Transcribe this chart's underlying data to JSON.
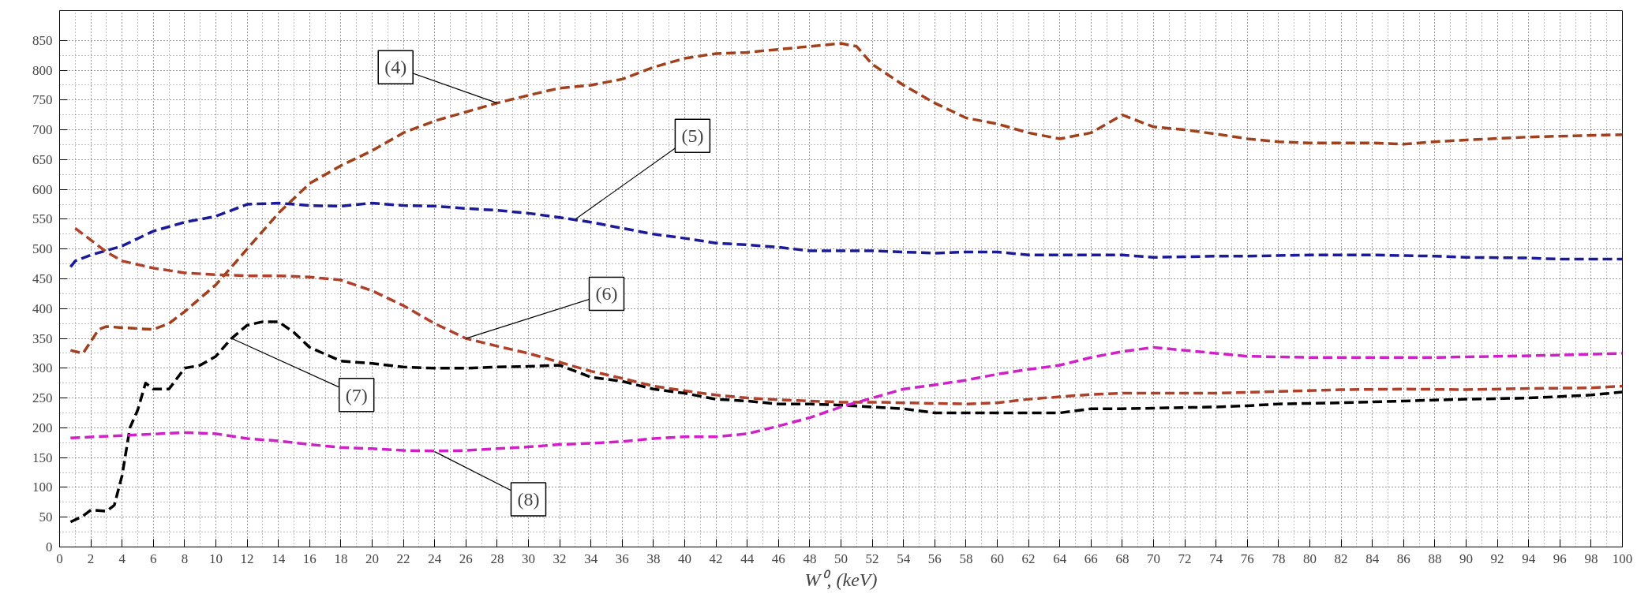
{
  "chart_data": {
    "type": "line",
    "xlabel": "W⁰, (keV)",
    "xlim": [
      0,
      100
    ],
    "ylim": [
      0,
      900
    ],
    "xticks": [
      0,
      2,
      4,
      6,
      8,
      10,
      12,
      14,
      16,
      18,
      20,
      22,
      24,
      26,
      28,
      30,
      32,
      34,
      36,
      38,
      40,
      42,
      44,
      46,
      48,
      50,
      52,
      54,
      56,
      58,
      60,
      62,
      64,
      66,
      68,
      70,
      72,
      74,
      76,
      78,
      80,
      82,
      84,
      86,
      88,
      90,
      92,
      94,
      96,
      98,
      100
    ],
    "yticks": [
      0,
      50,
      100,
      150,
      200,
      250,
      300,
      350,
      400,
      450,
      500,
      550,
      600,
      650,
      700,
      750,
      800,
      850
    ],
    "grid": true,
    "line_style": "dashed",
    "series": [
      {
        "color": "#a0401c",
        "x": [
          0.7,
          1.5,
          2.5,
          3,
          4,
          6,
          7,
          8,
          10,
          12,
          14,
          16,
          18,
          20,
          22,
          24,
          26,
          28,
          30,
          32,
          34,
          36,
          38,
          40,
          42,
          44,
          46,
          48,
          50,
          51,
          52,
          54,
          56,
          58,
          60,
          62,
          64,
          66,
          68,
          70,
          72,
          74,
          76,
          78,
          80,
          84,
          86,
          88,
          90,
          94,
          100
        ],
        "values": [
          330,
          325,
          365,
          370,
          368,
          365,
          375,
          395,
          440,
          500,
          560,
          610,
          640,
          665,
          695,
          715,
          730,
          745,
          758,
          770,
          775,
          785,
          805,
          820,
          828,
          830,
          835,
          840,
          845,
          840,
          810,
          775,
          745,
          720,
          710,
          695,
          685,
          695,
          725,
          705,
          700,
          693,
          685,
          680,
          678,
          678,
          676,
          680,
          683,
          688,
          692
        ]
      },
      {
        "color": "#1a1a9a",
        "x": [
          0.7,
          1,
          2,
          4,
          6,
          8,
          10,
          12,
          14,
          16,
          18,
          20,
          22,
          24,
          26,
          28,
          30,
          32,
          34,
          36,
          38,
          40,
          42,
          44,
          46,
          48,
          50,
          52,
          54,
          56,
          58,
          60,
          62,
          64,
          66,
          68,
          70,
          72,
          74,
          76,
          80,
          84,
          88,
          90,
          94,
          96,
          100
        ],
        "values": [
          470,
          480,
          490,
          505,
          530,
          545,
          555,
          575,
          577,
          573,
          572,
          577,
          573,
          572,
          568,
          565,
          560,
          553,
          545,
          535,
          525,
          518,
          510,
          507,
          503,
          497,
          497,
          497,
          495,
          493,
          495,
          495,
          490,
          490,
          490,
          490,
          486,
          487,
          488,
          488,
          490,
          490,
          488,
          486,
          485,
          483,
          483
        ]
      },
      {
        "color": "#b0402a",
        "x": [
          1,
          2,
          3,
          4,
          6,
          8,
          10,
          12,
          14,
          16,
          18,
          20,
          22,
          24,
          26,
          28,
          30,
          32,
          34,
          36,
          38,
          40,
          42,
          44,
          46,
          48,
          50,
          52,
          54,
          56,
          58,
          60,
          62,
          64,
          66,
          68,
          70,
          74,
          78,
          82,
          86,
          90,
          94,
          98,
          100
        ],
        "values": [
          535,
          515,
          495,
          480,
          468,
          460,
          457,
          455,
          455,
          453,
          448,
          430,
          405,
          375,
          350,
          337,
          325,
          310,
          295,
          283,
          270,
          262,
          255,
          250,
          247,
          245,
          243,
          243,
          242,
          241,
          240,
          242,
          248,
          252,
          256,
          258,
          258,
          258,
          261,
          264,
          265,
          264,
          266,
          267,
          270
        ]
      },
      {
        "color": "#000000",
        "x": [
          0.7,
          1.5,
          2,
          3,
          3.5,
          4,
          4.5,
          5,
          5.5,
          6,
          7,
          8,
          9,
          10,
          11,
          12,
          13,
          14,
          15,
          16,
          18,
          20,
          22,
          24,
          26,
          28,
          30,
          32,
          34,
          36,
          38,
          40,
          42,
          44,
          46,
          48,
          50,
          52,
          54,
          56,
          58,
          60,
          62,
          64,
          66,
          68,
          70,
          74,
          76,
          78,
          82,
          86,
          90,
          94,
          98,
          100
        ],
        "values": [
          42,
          52,
          62,
          60,
          70,
          120,
          200,
          230,
          275,
          265,
          265,
          300,
          305,
          320,
          350,
          372,
          378,
          378,
          360,
          335,
          312,
          308,
          302,
          300,
          300,
          302,
          303,
          305,
          285,
          278,
          265,
          258,
          248,
          245,
          240,
          240,
          238,
          235,
          232,
          225,
          225,
          225,
          225,
          225,
          232,
          232,
          233,
          235,
          237,
          240,
          242,
          245,
          248,
          250,
          255,
          260
        ]
      },
      {
        "color": "#d020c8",
        "x": [
          0.7,
          4,
          8,
          10,
          12,
          14,
          16,
          18,
          20,
          22,
          24,
          26,
          28,
          30,
          32,
          34,
          36,
          38,
          40,
          42,
          44,
          46,
          48,
          50,
          52,
          54,
          56,
          58,
          60,
          62,
          64,
          66,
          68,
          70,
          72,
          74,
          76,
          80,
          84,
          88,
          92,
          96,
          100
        ],
        "values": [
          183,
          187,
          192,
          190,
          182,
          178,
          172,
          167,
          165,
          162,
          161,
          162,
          165,
          168,
          172,
          174,
          177,
          182,
          185,
          185,
          190,
          203,
          217,
          235,
          250,
          265,
          272,
          280,
          290,
          298,
          305,
          318,
          328,
          335,
          330,
          325,
          320,
          318,
          318,
          318,
          320,
          322,
          325
        ]
      }
    ],
    "annotations": [
      {
        "text": "(4)",
        "x": 28,
        "y": 745
      },
      {
        "text": "(5)",
        "x": 33,
        "y": 550
      },
      {
        "text": "(6)",
        "x": 26,
        "y": 350
      },
      {
        "text": "(7)",
        "x": 11,
        "y": 350
      },
      {
        "text": "(8)",
        "x": 24,
        "y": 160
      }
    ]
  }
}
